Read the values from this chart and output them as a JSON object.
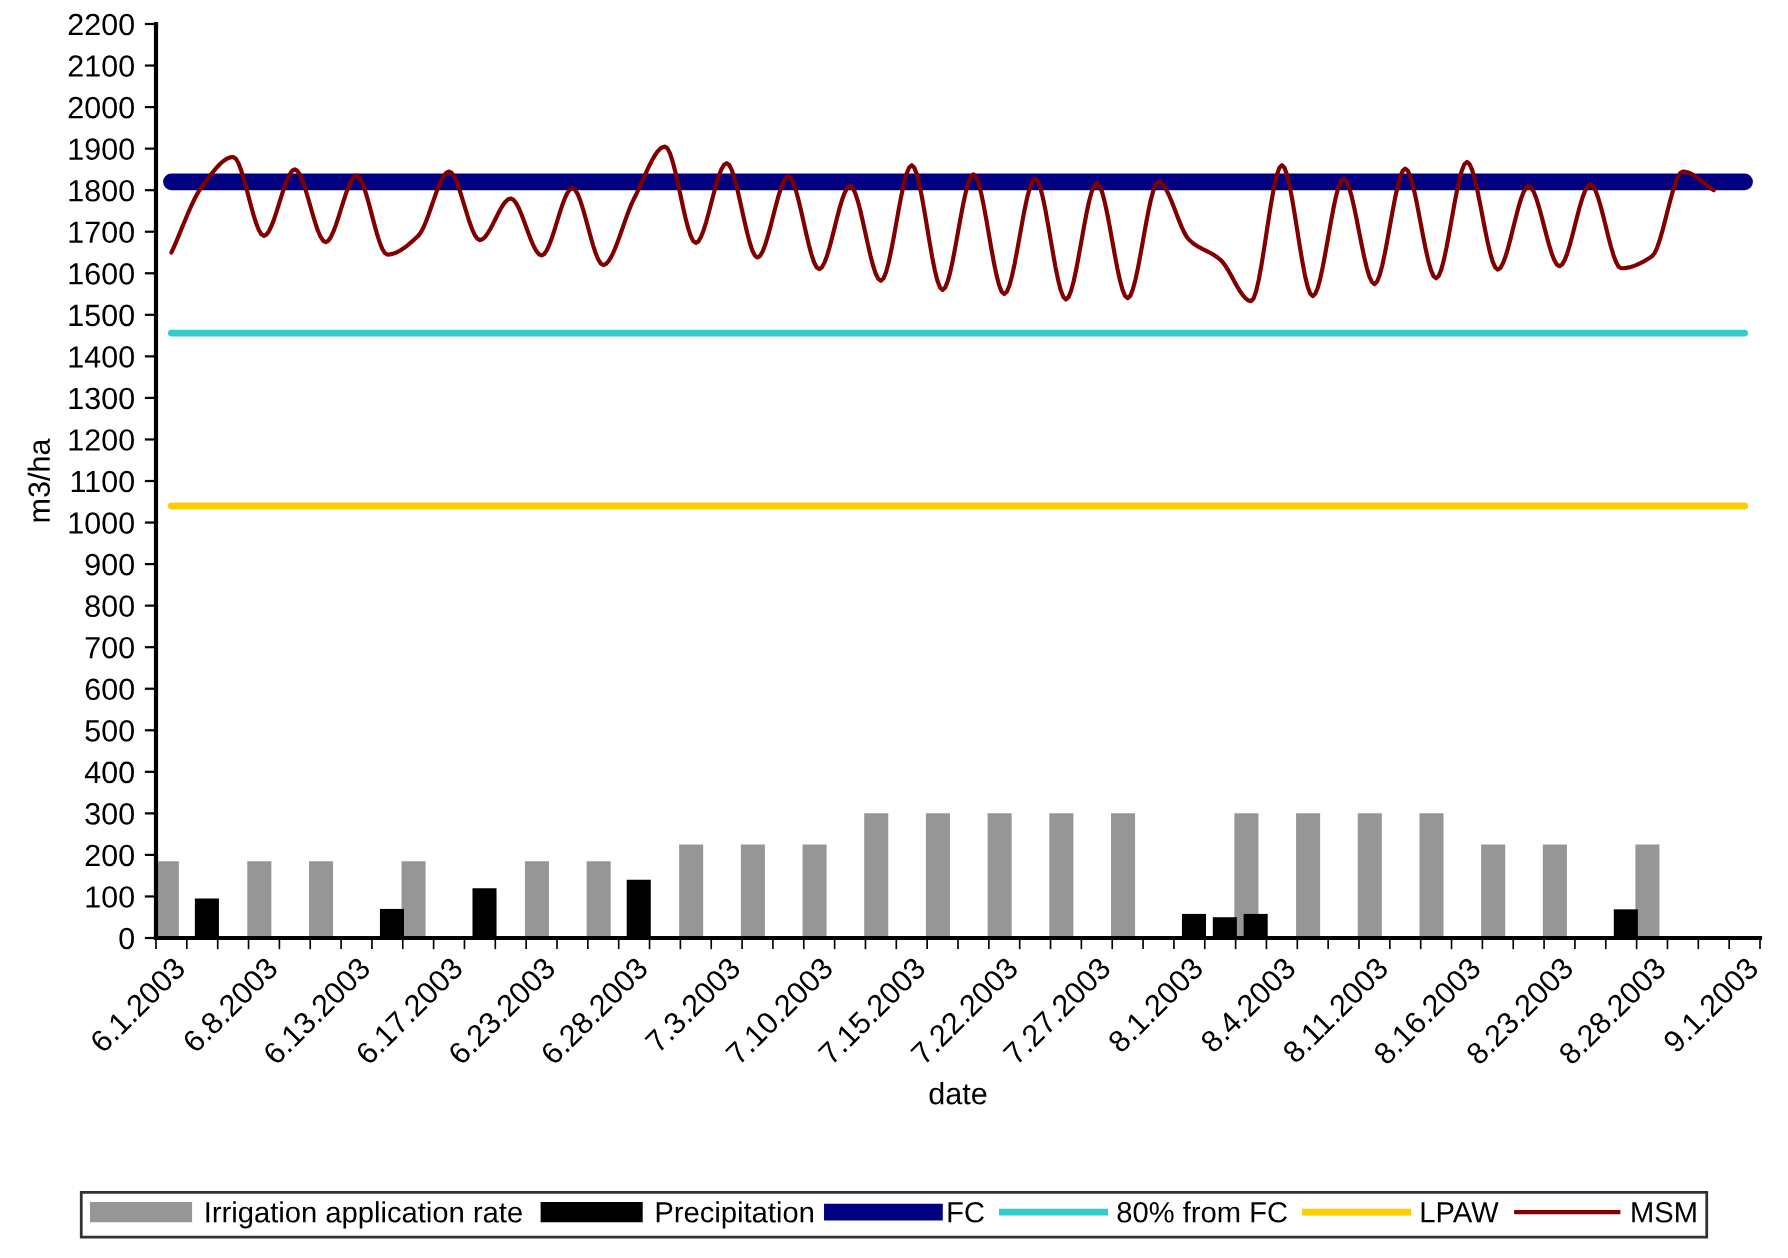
{
  "chart_data": {
    "type": "bar",
    "xlabel": "date",
    "ylabel": "m3/ha",
    "categories": [
      "6.1.2003",
      null,
      null,
      "6.8.2003",
      null,
      null,
      "6.13.2003",
      null,
      null,
      "6.17.2003",
      null,
      null,
      "6.23.2003",
      null,
      null,
      "6.28.2003",
      null,
      null,
      "7.3.2003",
      null,
      null,
      "7.10.2003",
      null,
      null,
      "7.15.2003",
      null,
      null,
      "7.22.2003",
      null,
      null,
      "7.27.2003",
      null,
      null,
      "8.1.2003",
      null,
      null,
      "8.4.2003",
      null,
      null,
      "8.11.2003",
      null,
      null,
      "8.16.2003",
      null,
      null,
      "8.23.2003",
      null,
      null,
      "8.28.2003",
      null,
      null,
      "9.1.2003"
    ],
    "series": [
      {
        "name": "Irrigation application rate",
        "color": "#969696",
        "values": [
          185,
          null,
          null,
          185,
          null,
          185,
          null,
          null,
          185,
          null,
          null,
          null,
          185,
          null,
          185,
          null,
          null,
          225,
          null,
          225,
          null,
          225,
          null,
          300,
          null,
          300,
          null,
          300,
          null,
          300,
          null,
          300,
          null,
          null,
          null,
          300,
          null,
          300,
          null,
          300,
          null,
          300,
          null,
          225,
          null,
          225,
          null,
          null,
          225,
          null,
          null,
          null
        ]
      },
      {
        "name": "Precipitation",
        "color": "#000000",
        "values": [
          null,
          95,
          null,
          null,
          null,
          null,
          null,
          70,
          null,
          null,
          120,
          null,
          null,
          null,
          null,
          140,
          null,
          null,
          null,
          null,
          null,
          null,
          null,
          null,
          null,
          null,
          null,
          null,
          null,
          null,
          null,
          null,
          null,
          58,
          50,
          58,
          null,
          null,
          null,
          null,
          null,
          null,
          null,
          null,
          null,
          null,
          null,
          69,
          null,
          null,
          null,
          null
        ]
      },
      {
        "name": "FC",
        "type": "line",
        "color": "#000080",
        "values": [
          1820,
          1820,
          1820,
          1820,
          1820,
          1820,
          1820,
          1820,
          1820,
          1820,
          1820,
          1820,
          1820,
          1820,
          1820,
          1820,
          1820,
          1820,
          1820,
          1820,
          1820,
          1820,
          1820,
          1820,
          1820,
          1820,
          1820,
          1820,
          1820,
          1820,
          1820,
          1820,
          1820,
          1820,
          1820,
          1820,
          1820,
          1820,
          1820,
          1820,
          1820,
          1820,
          1820,
          1820,
          1820,
          1820,
          1820,
          1820,
          1820,
          1820,
          1820,
          1820
        ]
      },
      {
        "name": "80% from FC",
        "type": "line",
        "color": "#33cccc",
        "values": [
          1456,
          1456,
          1456,
          1456,
          1456,
          1456,
          1456,
          1456,
          1456,
          1456,
          1456,
          1456,
          1456,
          1456,
          1456,
          1456,
          1456,
          1456,
          1456,
          1456,
          1456,
          1456,
          1456,
          1456,
          1456,
          1456,
          1456,
          1456,
          1456,
          1456,
          1456,
          1456,
          1456,
          1456,
          1456,
          1456,
          1456,
          1456,
          1456,
          1456,
          1456,
          1456,
          1456,
          1456,
          1456,
          1456,
          1456,
          1456,
          1456,
          1456,
          1456,
          1456
        ]
      },
      {
        "name": "LPAW",
        "type": "line",
        "color": "#ffcc00",
        "values": [
          1040,
          1040,
          1040,
          1040,
          1040,
          1040,
          1040,
          1040,
          1040,
          1040,
          1040,
          1040,
          1040,
          1040,
          1040,
          1040,
          1040,
          1040,
          1040,
          1040,
          1040,
          1040,
          1040,
          1040,
          1040,
          1040,
          1040,
          1040,
          1040,
          1040,
          1040,
          1040,
          1040,
          1040,
          1040,
          1040,
          1040,
          1040,
          1040,
          1040,
          1040,
          1040,
          1040,
          1040,
          1040,
          1040,
          1040,
          1040,
          1040,
          1040,
          1040,
          1040
        ]
      },
      {
        "name": "MSM",
        "type": "line",
        "color": "#800000",
        "values": [
          1650,
          1810,
          1880,
          1690,
          1850,
          1675,
          1835,
          1645,
          1690,
          1845,
          1680,
          1780,
          1643,
          1805,
          1620,
          1780,
          1905,
          1673,
          1865,
          1638,
          1833,
          1610,
          1810,
          1582,
          1860,
          1560,
          1838,
          1550,
          1828,
          1537,
          1817,
          1540,
          1820,
          1680,
          1633,
          1533,
          1860,
          1545,
          1828,
          1574,
          1852,
          1588,
          1868,
          1609,
          1810,
          1617,
          1814,
          1612,
          1641,
          1845,
          1800,
          null
        ]
      }
    ],
    "ylim": [
      0,
      2200
    ],
    "yticks": [
      0,
      100,
      200,
      300,
      400,
      500,
      600,
      700,
      800,
      900,
      1000,
      1100,
      1200,
      1300,
      1400,
      1500,
      1600,
      1700,
      1800,
      1900,
      2000,
      2100,
      2200
    ],
    "grid": false,
    "legend": "bottom"
  }
}
